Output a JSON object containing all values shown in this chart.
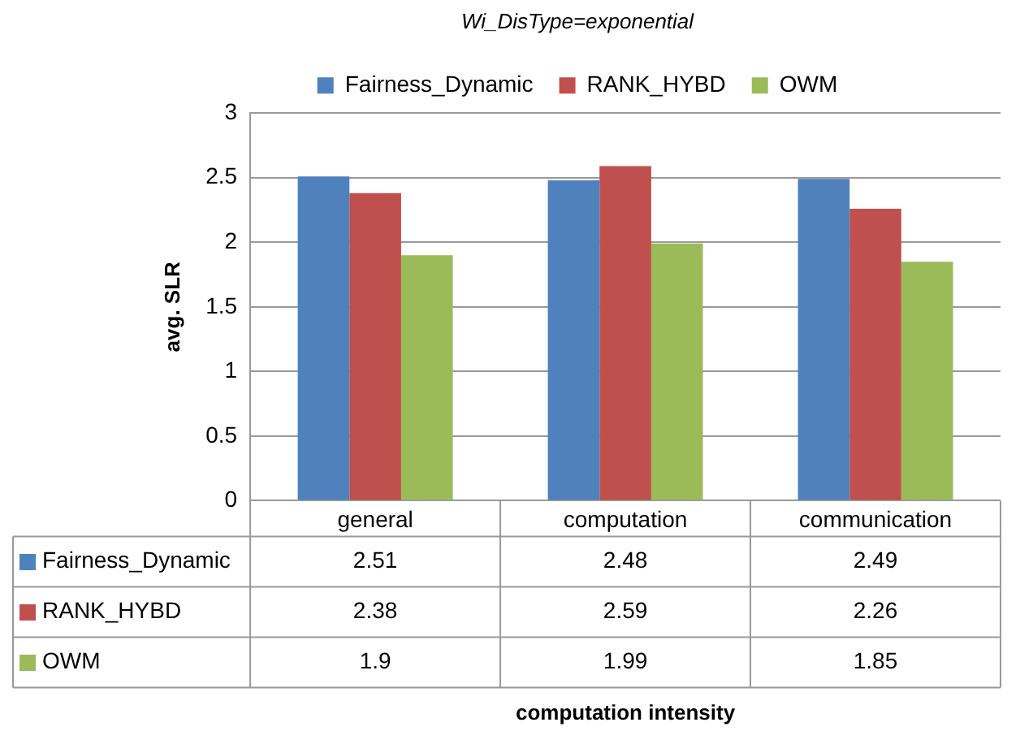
{
  "chart_data": {
    "type": "bar",
    "title": "Wi_DisType=exponential",
    "annotations": [
      "computation intensity"
    ],
    "ylabel": "avg. SLR",
    "categories": [
      "general",
      "computation",
      "communication"
    ],
    "series": [
      {
        "name": "Fairness_Dynamic",
        "color": "#4f81bd",
        "values": [
          2.51,
          2.48,
          2.49
        ]
      },
      {
        "name": "RANK_HYBD",
        "color": "#c0504d",
        "values": [
          2.38,
          2.59,
          2.26
        ]
      },
      {
        "name": "OWM",
        "color": "#9bbb59",
        "values": [
          1.9,
          1.99,
          1.85
        ]
      }
    ],
    "ylim": [
      0,
      3
    ],
    "yticks": [
      0,
      0.5,
      1,
      1.5,
      2,
      2.5,
      3
    ],
    "grid": "y",
    "legend": "top",
    "data_labels": true
  }
}
